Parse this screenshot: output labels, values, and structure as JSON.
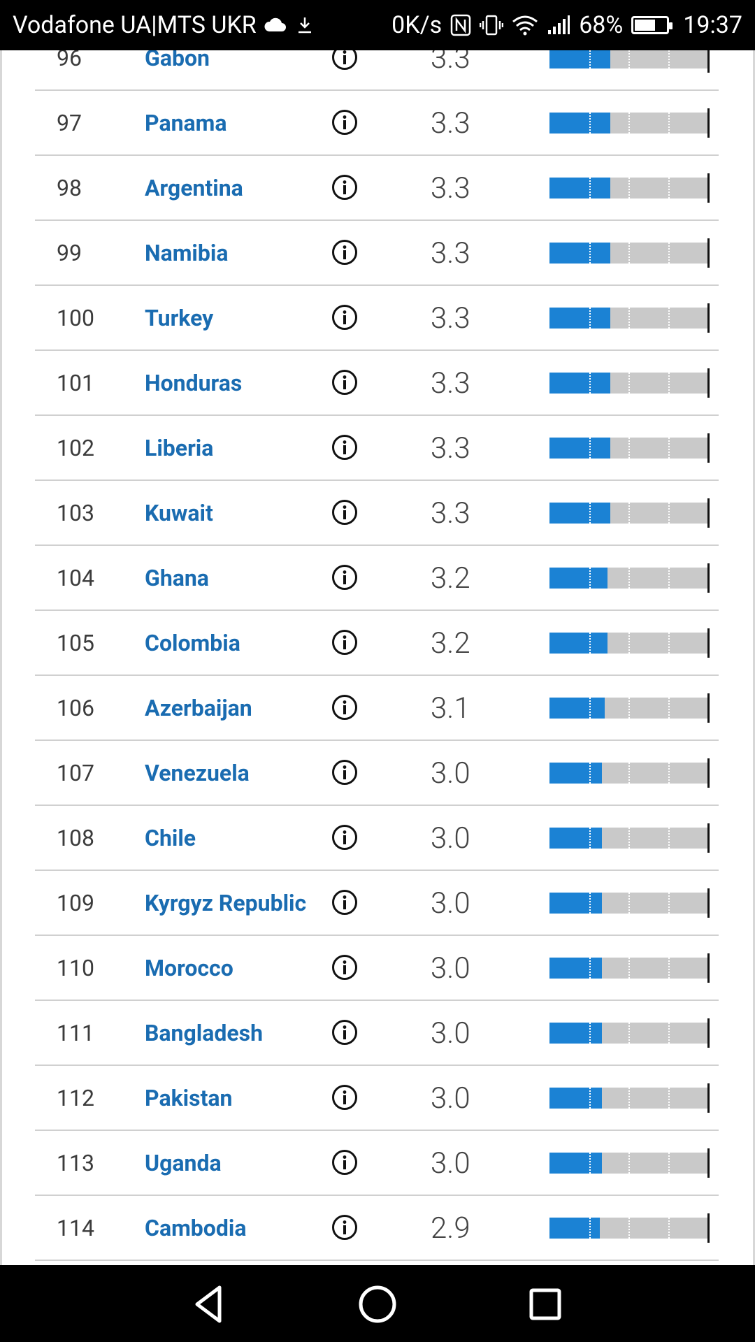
{
  "status_bar": {
    "carrier": "Vodafone UA|MTS UKR",
    "speed": "0K/s",
    "battery_percent": "68%",
    "battery_level": 0.68,
    "time": "19:37",
    "icons": [
      "cloud-icon",
      "download-icon",
      "nfc-icon",
      "vibrate-icon",
      "wifi-icon",
      "signal-icon",
      "battery-icon"
    ]
  },
  "rows": [
    {
      "rank": "96",
      "country": "Gabon",
      "score": "3.3"
    },
    {
      "rank": "97",
      "country": "Panama",
      "score": "3.3"
    },
    {
      "rank": "98",
      "country": "Argentina",
      "score": "3.3"
    },
    {
      "rank": "99",
      "country": "Namibia",
      "score": "3.3"
    },
    {
      "rank": "100",
      "country": "Turkey",
      "score": "3.3"
    },
    {
      "rank": "101",
      "country": "Honduras",
      "score": "3.3"
    },
    {
      "rank": "102",
      "country": "Liberia",
      "score": "3.3"
    },
    {
      "rank": "103",
      "country": "Kuwait",
      "score": "3.3"
    },
    {
      "rank": "104",
      "country": "Ghana",
      "score": "3.2"
    },
    {
      "rank": "105",
      "country": "Colombia",
      "score": "3.2"
    },
    {
      "rank": "106",
      "country": "Azerbaijan",
      "score": "3.1"
    },
    {
      "rank": "107",
      "country": "Venezuela",
      "score": "3.0"
    },
    {
      "rank": "108",
      "country": "Chile",
      "score": "3.0"
    },
    {
      "rank": "109",
      "country": "Kyrgyz Republic",
      "score": "3.0"
    },
    {
      "rank": "110",
      "country": "Morocco",
      "score": "3.0"
    },
    {
      "rank": "111",
      "country": "Bangladesh",
      "score": "3.0"
    },
    {
      "rank": "112",
      "country": "Pakistan",
      "score": "3.0"
    },
    {
      "rank": "113",
      "country": "Uganda",
      "score": "3.0"
    },
    {
      "rank": "114",
      "country": "Cambodia",
      "score": "2.9"
    }
  ],
  "score_scale": {
    "min": 1,
    "max": 7
  },
  "colors": {
    "link": "#1a6cb1",
    "bar_fill": "#1b82d4",
    "bar_track": "#c9c9c9"
  },
  "nav_bar": {
    "icons": [
      "back-icon",
      "home-icon",
      "recents-icon"
    ]
  }
}
